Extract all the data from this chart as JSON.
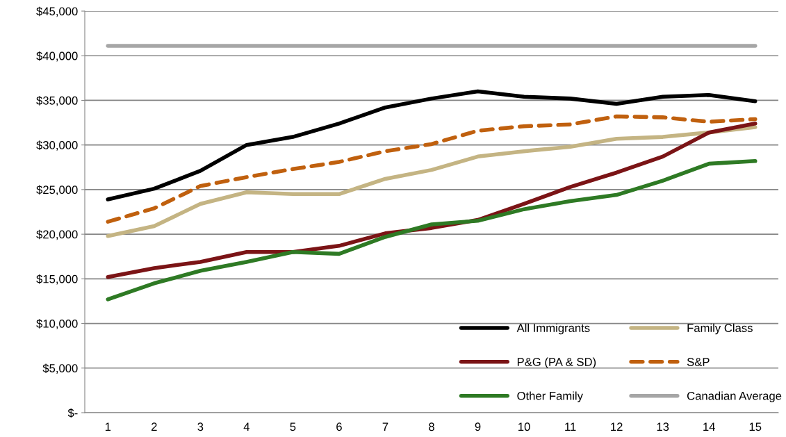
{
  "chart_data": {
    "type": "line",
    "categories": [
      "1",
      "2",
      "3",
      "4",
      "5",
      "6",
      "7",
      "8",
      "9",
      "10",
      "11",
      "12",
      "13",
      "14",
      "15"
    ],
    "series": [
      {
        "name": "All Immigrants",
        "color": "#000000",
        "values": [
          23900,
          25100,
          27100,
          30000,
          30900,
          32400,
          34200,
          35200,
          36000,
          35400,
          35200,
          34600,
          35400,
          35600,
          34900
        ]
      },
      {
        "name": "Family Class",
        "color": "#c4b483",
        "values": [
          19800,
          20900,
          23400,
          24700,
          24500,
          24500,
          26200,
          27200,
          28700,
          29300,
          29800,
          30700,
          30900,
          31400,
          32000
        ]
      },
      {
        "name": "P&G (PA & SD)",
        "color": "#7b1416",
        "values": [
          15200,
          16200,
          16900,
          18000,
          18000,
          18700,
          20100,
          20700,
          21600,
          23400,
          25300,
          26900,
          28700,
          31400,
          32400
        ]
      },
      {
        "name": "S&P",
        "color": "#c0600e",
        "line_style": "dashed",
        "values": [
          21400,
          22900,
          25400,
          26400,
          27300,
          28100,
          29300,
          30100,
          31600,
          32100,
          32300,
          33200,
          33100,
          32600,
          32900
        ]
      },
      {
        "name": "Other Family",
        "color": "#2e7a24",
        "values": [
          12700,
          14500,
          15900,
          16900,
          18000,
          17800,
          19700,
          21100,
          21500,
          22800,
          23700,
          24400,
          26000,
          27900,
          28200
        ]
      },
      {
        "name": "Canadian Average",
        "color": "#a6a6a6",
        "values": [
          41100,
          41100,
          41100,
          41100,
          41100,
          41100,
          41100,
          41100,
          41100,
          41100,
          41100,
          41100,
          41100,
          41100,
          41100
        ]
      }
    ],
    "ylim": [
      0,
      45000
    ],
    "yticks": [
      {
        "value": 0,
        "label": "$-"
      },
      {
        "value": 5000,
        "label": "$5,000"
      },
      {
        "value": 10000,
        "label": "$10,000"
      },
      {
        "value": 15000,
        "label": "$15,000"
      },
      {
        "value": 20000,
        "label": "$20,000"
      },
      {
        "value": 25000,
        "label": "$25,000"
      },
      {
        "value": 30000,
        "label": "$30,000"
      },
      {
        "value": 35000,
        "label": "$35,000"
      },
      {
        "value": 40000,
        "label": "$40,000"
      },
      {
        "value": 45000,
        "label": "$45,000"
      }
    ],
    "grid": "y",
    "legend": "bottom right",
    "line_style": "solid",
    "marker": "none"
  }
}
